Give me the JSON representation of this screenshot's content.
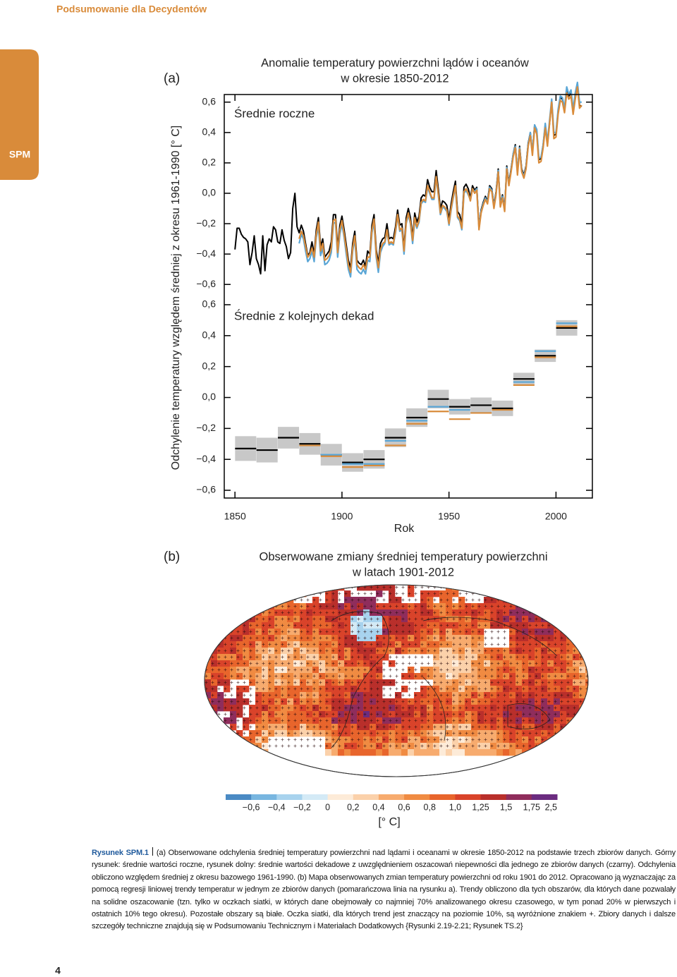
{
  "header": {
    "title": "Podsumowanie dla Decydentów",
    "tab": "SPM",
    "page_number": "4"
  },
  "panel_a": {
    "label": "(a)",
    "title_lines": [
      "Anomalie temperatury powierzchni lądów i oceanów",
      "w okresie 1850-2012"
    ],
    "ylabel": "Odchylenie temperatury względem średniej z okresu 1961-1990 [° C]",
    "xlabel": "Rok"
  },
  "chart_data": [
    {
      "type": "line",
      "title": "Średnie roczne",
      "xlim": [
        1845,
        2017
      ],
      "ylim": [
        -0.65,
        0.65
      ],
      "yticks": [
        {
          "value": 0.6,
          "label": "0,6"
        },
        {
          "value": 0.4,
          "label": "0,4"
        },
        {
          "value": 0.2,
          "label": "0,2"
        },
        {
          "value": 0,
          "label": "0,0"
        },
        {
          "value": -0.2,
          "label": "−0,2"
        },
        {
          "value": -0.4,
          "label": "−0,4"
        },
        {
          "value": -0.6,
          "label": "−0,6"
        }
      ],
      "x": [
        1850,
        1851,
        1852,
        1853,
        1854,
        1855,
        1856,
        1857,
        1858,
        1859,
        1860,
        1861,
        1862,
        1863,
        1864,
        1865,
        1866,
        1867,
        1868,
        1869,
        1870,
        1871,
        1872,
        1873,
        1874,
        1875,
        1876,
        1877,
        1878,
        1879,
        1880,
        1881,
        1882,
        1883,
        1884,
        1885,
        1886,
        1887,
        1888,
        1889,
        1890,
        1891,
        1892,
        1893,
        1894,
        1895,
        1896,
        1897,
        1898,
        1899,
        1900,
        1901,
        1902,
        1903,
        1904,
        1905,
        1906,
        1907,
        1908,
        1909,
        1910,
        1911,
        1912,
        1913,
        1914,
        1915,
        1916,
        1917,
        1918,
        1919,
        1920,
        1921,
        1922,
        1923,
        1924,
        1925,
        1926,
        1927,
        1928,
        1929,
        1930,
        1931,
        1932,
        1933,
        1934,
        1935,
        1936,
        1937,
        1938,
        1939,
        1940,
        1941,
        1942,
        1943,
        1944,
        1945,
        1946,
        1947,
        1948,
        1949,
        1950,
        1951,
        1952,
        1953,
        1954,
        1955,
        1956,
        1957,
        1958,
        1959,
        1960,
        1961,
        1962,
        1963,
        1964,
        1965,
        1966,
        1967,
        1968,
        1969,
        1970,
        1971,
        1972,
        1973,
        1974,
        1975,
        1976,
        1977,
        1978,
        1979,
        1980,
        1981,
        1982,
        1983,
        1984,
        1985,
        1986,
        1987,
        1988,
        1989,
        1990,
        1991,
        1992,
        1993,
        1994,
        1995,
        1996,
        1997,
        1998,
        1999,
        2000,
        2001,
        2002,
        2003,
        2004,
        2005,
        2006,
        2007,
        2008,
        2009,
        2010,
        2011,
        2012
      ],
      "series": [
        {
          "color": "#000000",
          "values": [
            -0.37,
            -0.23,
            -0.23,
            -0.27,
            -0.29,
            -0.3,
            -0.32,
            -0.47,
            -0.39,
            -0.28,
            -0.43,
            -0.47,
            -0.53,
            -0.28,
            -0.51,
            -0.34,
            -0.3,
            -0.32,
            -0.22,
            -0.24,
            -0.32,
            -0.33,
            -0.24,
            -0.31,
            -0.35,
            -0.43,
            -0.39,
            -0.1,
            0.0,
            -0.22,
            -0.26,
            -0.21,
            -0.25,
            -0.33,
            -0.41,
            -0.39,
            -0.32,
            -0.4,
            -0.24,
            -0.16,
            -0.35,
            -0.3,
            -0.42,
            -0.4,
            -0.38,
            -0.32,
            -0.14,
            -0.14,
            -0.36,
            -0.21,
            -0.15,
            -0.24,
            -0.34,
            -0.44,
            -0.49,
            -0.33,
            -0.25,
            -0.44,
            -0.46,
            -0.47,
            -0.44,
            -0.48,
            -0.38,
            -0.4,
            -0.21,
            -0.14,
            -0.37,
            -0.46,
            -0.33,
            -0.3,
            -0.29,
            -0.2,
            -0.3,
            -0.29,
            -0.3,
            -0.22,
            -0.11,
            -0.21,
            -0.2,
            -0.36,
            -0.16,
            -0.1,
            -0.16,
            -0.29,
            -0.13,
            -0.19,
            -0.15,
            -0.03,
            -0.01,
            -0.02,
            0.09,
            0.04,
            0.01,
            0.01,
            0.15,
            0.03,
            -0.1,
            -0.05,
            -0.06,
            -0.08,
            -0.17,
            -0.07,
            0.01,
            0.08,
            -0.12,
            -0.14,
            -0.2,
            0.04,
            0.06,
            0.03,
            -0.03,
            0.05,
            0.02,
            0.04,
            -0.22,
            -0.11,
            -0.06,
            -0.02,
            -0.05,
            0.05,
            0.03,
            -0.08,
            0.01,
            0.16,
            -0.07,
            -0.01,
            -0.1,
            0.18,
            0.07,
            0.16,
            0.26,
            0.32,
            0.14,
            0.31,
            0.16,
            0.12,
            0.18,
            0.33,
            0.4,
            0.27,
            0.45,
            0.41,
            0.22,
            0.23,
            0.32,
            0.45,
            0.33,
            0.46,
            0.61,
            0.38,
            0.39,
            0.54,
            0.63,
            0.62,
            0.54,
            0.68,
            0.64,
            0.66,
            0.54,
            0.64,
            0.72,
            0.58,
            0.57
          ]
        },
        {
          "color": "#5aa6d6",
          "values": [
            null,
            null,
            null,
            null,
            null,
            null,
            null,
            null,
            null,
            null,
            null,
            null,
            null,
            null,
            null,
            null,
            null,
            null,
            null,
            null,
            null,
            null,
            null,
            null,
            null,
            null,
            null,
            null,
            null,
            null,
            -0.33,
            -0.27,
            -0.3,
            -0.38,
            -0.45,
            -0.43,
            -0.38,
            -0.45,
            -0.29,
            -0.22,
            -0.41,
            -0.36,
            -0.47,
            -0.46,
            -0.44,
            -0.39,
            -0.2,
            -0.19,
            -0.42,
            -0.27,
            -0.2,
            -0.29,
            -0.4,
            -0.5,
            -0.55,
            -0.38,
            -0.3,
            -0.5,
            -0.52,
            -0.53,
            -0.5,
            -0.53,
            -0.44,
            -0.45,
            -0.26,
            -0.19,
            -0.42,
            -0.52,
            -0.39,
            -0.35,
            -0.33,
            -0.25,
            -0.34,
            -0.33,
            -0.34,
            -0.26,
            -0.15,
            -0.25,
            -0.24,
            -0.4,
            -0.2,
            -0.14,
            -0.2,
            -0.33,
            -0.18,
            -0.23,
            -0.19,
            -0.07,
            -0.05,
            -0.06,
            0.04,
            0.0,
            -0.04,
            -0.04,
            0.1,
            -0.01,
            -0.14,
            -0.09,
            -0.1,
            -0.12,
            -0.21,
            -0.11,
            -0.03,
            0.04,
            -0.16,
            -0.18,
            -0.24,
            0.0,
            0.02,
            -0.01,
            -0.04,
            0.03,
            0.01,
            0.03,
            -0.23,
            -0.12,
            -0.07,
            -0.03,
            -0.06,
            0.04,
            0.02,
            -0.09,
            0.0,
            0.15,
            -0.08,
            -0.02,
            -0.11,
            0.17,
            0.06,
            0.15,
            0.26,
            0.31,
            0.14,
            0.3,
            0.15,
            0.11,
            0.17,
            0.32,
            0.4,
            0.27,
            0.45,
            0.42,
            0.23,
            0.24,
            0.32,
            0.46,
            0.34,
            0.48,
            0.62,
            0.4,
            0.4,
            0.55,
            0.64,
            0.63,
            0.56,
            0.7,
            0.65,
            0.68,
            0.55,
            0.66,
            0.73,
            0.6,
            0.6
          ]
        },
        {
          "color": "#d98b3a",
          "values": [
            null,
            null,
            null,
            null,
            null,
            null,
            null,
            null,
            null,
            null,
            null,
            null,
            null,
            null,
            null,
            null,
            null,
            null,
            null,
            null,
            null,
            null,
            null,
            null,
            null,
            null,
            null,
            null,
            null,
            null,
            -0.3,
            -0.25,
            -0.28,
            -0.35,
            -0.42,
            -0.4,
            -0.36,
            -0.42,
            -0.27,
            -0.19,
            -0.38,
            -0.33,
            -0.44,
            -0.43,
            -0.41,
            -0.36,
            -0.18,
            -0.17,
            -0.39,
            -0.24,
            -0.18,
            -0.27,
            -0.37,
            -0.47,
            -0.52,
            -0.36,
            -0.28,
            -0.47,
            -0.49,
            -0.5,
            -0.47,
            -0.5,
            -0.42,
            -0.42,
            -0.24,
            -0.17,
            -0.4,
            -0.49,
            -0.37,
            -0.33,
            -0.32,
            -0.24,
            -0.33,
            -0.32,
            -0.33,
            -0.25,
            -0.14,
            -0.24,
            -0.23,
            -0.38,
            -0.19,
            -0.13,
            -0.19,
            -0.31,
            -0.16,
            -0.22,
            -0.18,
            -0.06,
            -0.04,
            -0.05,
            0.05,
            0.01,
            -0.03,
            -0.03,
            0.11,
            0.0,
            -0.13,
            -0.08,
            -0.09,
            -0.11,
            -0.2,
            -0.1,
            -0.02,
            0.05,
            -0.15,
            -0.17,
            -0.23,
            0.01,
            0.03,
            0.0,
            -0.05,
            0.03,
            0.0,
            0.02,
            -0.24,
            -0.13,
            -0.08,
            -0.04,
            -0.07,
            0.03,
            0.01,
            -0.1,
            -0.01,
            0.14,
            -0.09,
            -0.03,
            -0.12,
            0.16,
            0.05,
            0.14,
            0.24,
            0.3,
            0.12,
            0.29,
            0.14,
            0.1,
            0.16,
            0.31,
            0.38,
            0.25,
            0.43,
            0.39,
            0.2,
            0.21,
            0.3,
            0.43,
            0.31,
            0.46,
            0.6,
            0.36,
            0.37,
            0.52,
            0.61,
            0.6,
            0.53,
            0.66,
            0.62,
            0.64,
            0.52,
            0.62,
            0.7,
            0.56,
            0.58
          ]
        }
      ]
    },
    {
      "type": "range",
      "title": "Średnie z kolejnych dekad",
      "xlim": [
        1845,
        2017
      ],
      "ylim": [
        -0.65,
        0.65
      ],
      "yticks": [
        {
          "value": 0.6,
          "label": "0,6"
        },
        {
          "value": 0.4,
          "label": "0,4"
        },
        {
          "value": 0.2,
          "label": "0,2"
        },
        {
          "value": 0,
          "label": "0,0"
        },
        {
          "value": -0.2,
          "label": "−0,2"
        },
        {
          "value": -0.4,
          "label": "−0,4"
        },
        {
          "value": -0.6,
          "label": "−0,6"
        }
      ],
      "xticks": [
        1850,
        1900,
        1950,
        2000
      ],
      "uncertainty_color": "#c8c8c8",
      "x": [
        1855,
        1865,
        1875,
        1885,
        1895,
        1905,
        1915,
        1925,
        1935,
        1945,
        1955,
        1965,
        1975,
        1985,
        1995,
        2005
      ],
      "series": [
        {
          "color": "#000000",
          "values": [
            -0.33,
            -0.34,
            -0.26,
            -0.3,
            -0.37,
            -0.42,
            -0.4,
            -0.26,
            -0.13,
            -0.01,
            -0.06,
            -0.05,
            -0.07,
            0.12,
            0.27,
            0.45
          ],
          "errors": [
            0.08,
            0.08,
            0.07,
            0.07,
            0.07,
            0.06,
            0.06,
            0.06,
            0.06,
            0.06,
            0.05,
            0.05,
            0.05,
            0.04,
            0.04,
            0.05
          ]
        },
        {
          "color": "#5aa6d6",
          "values": [
            null,
            null,
            null,
            -0.31,
            -0.37,
            -0.43,
            -0.43,
            -0.28,
            -0.15,
            -0.06,
            -0.08,
            -0.1,
            -0.08,
            0.1,
            0.3,
            0.48
          ]
        },
        {
          "color": "#d98b3a",
          "values": [
            null,
            null,
            null,
            -0.31,
            -0.38,
            -0.45,
            -0.44,
            -0.31,
            -0.17,
            -0.09,
            -0.14,
            -0.1,
            -0.08,
            0.08,
            0.26,
            0.46
          ]
        }
      ]
    }
  ],
  "panel_b": {
    "label": "(b)",
    "title_lines": [
      "Obserwowane zmiany średniej temperatury powierzchni",
      "w latach 1901-2012"
    ]
  },
  "colorbar": {
    "colors": [
      "#4a8ac4",
      "#78b6e0",
      "#a8d3ee",
      "#d4eaf6",
      "#fdebd8",
      "#fbd1aa",
      "#f7ab6e",
      "#f08b42",
      "#e8652c",
      "#d9432a",
      "#b92f2b",
      "#8f2d5c",
      "#6b2c80"
    ],
    "ticks": [
      {
        "value": -0.6,
        "label": "−0,6"
      },
      {
        "value": -0.4,
        "label": "−0,4"
      },
      {
        "value": -0.2,
        "label": "−0,2"
      },
      0,
      {
        "value": 0.2,
        "label": "0,2"
      },
      {
        "value": 0.4,
        "label": "0,4"
      },
      {
        "value": 0.6,
        "label": "0,6"
      },
      {
        "value": 0.8,
        "label": "0,8"
      },
      {
        "value": 1.0,
        "label": "1,0"
      },
      {
        "value": 1.25,
        "label": "1,25"
      },
      {
        "value": 1.5,
        "label": "1,5"
      },
      {
        "value": 1.75,
        "label": "1,75"
      },
      {
        "value": 2.5,
        "label": "2,5"
      }
    ],
    "unit": "[° C]"
  },
  "caption": {
    "label": "Rysunek SPM.1",
    "text": "(a) Obserwowane odchylenia średniej temperatury powierzchni nad lądami i oceanami w okresie 1850-2012 na podstawie trzech zbiorów danych. Górny rysunek: średnie wartości roczne, rysunek dolny: średnie wartości dekadowe z uwzględnieniem oszacowań niepewności dla jednego ze zbiorów danych (czarny). Odchylenia obliczono względem średniej z okresu bazowego 1961-1990. (b) Mapa obserwowanych zmian temperatury powierzchni od roku 1901 do 2012. Opracowano ją wyznaczając za pomocą regresji liniowej trendy temperatur w jednym ze zbiorów danych (pomarańczowa linia na rysunku a). Trendy obliczono dla tych obszarów, dla których dane pozwalały na solidne oszacowanie (tzn. tylko w oczkach siatki, w których dane obejmowały co najmniej 70% analizowanego okresu czasowego, w tym ponad 20% w pierwszych i ostatnich 10% tego okresu). Pozostałe obszary są białe. Oczka siatki, dla których trend jest znaczący na poziomie 10%, są wyróżnione znakiem +. Zbiory danych i dalsze szczegóły techniczne znajdują się w Podsumowaniu Technicznym i Materiałach Dodatkowych {Rysunki 2.19-2.21; Rysunek TS.2}"
  }
}
